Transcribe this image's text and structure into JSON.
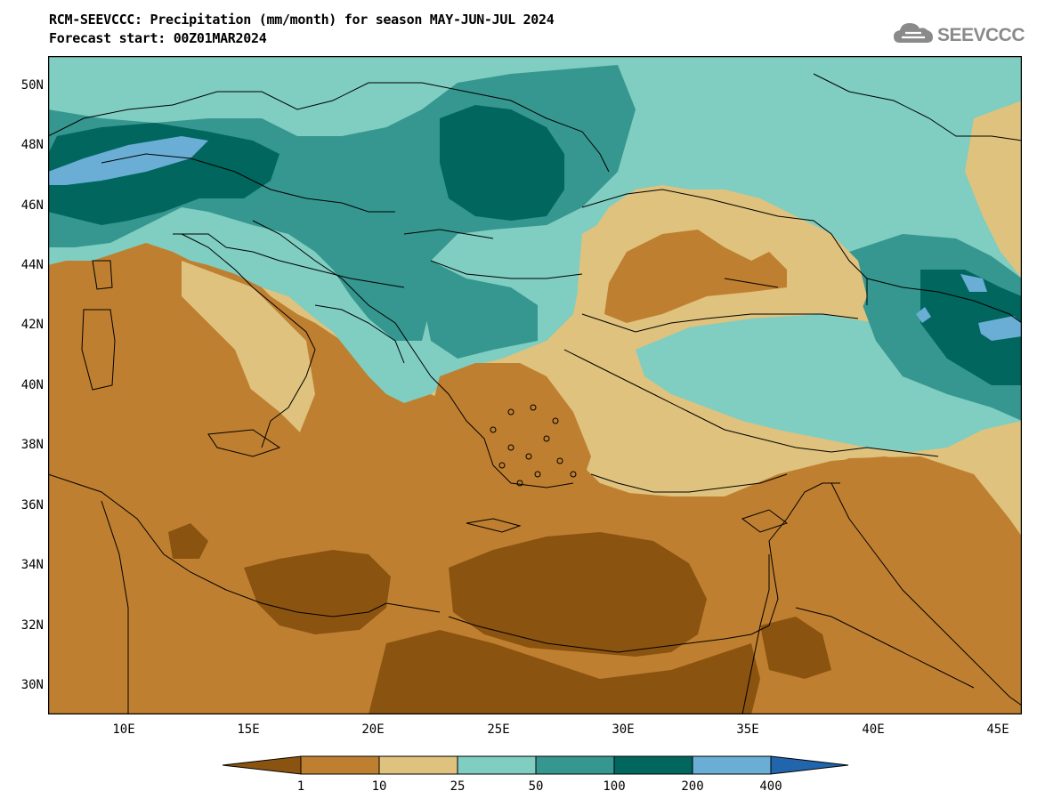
{
  "title": {
    "line1": "RCM-SEEVCCC: Precipitation (mm/month) for season MAY-JUN-JUL 2024",
    "line2": "Forecast start: 00Z01MAR2024"
  },
  "logo": {
    "text": "SEEVCCC",
    "icon": "cloud-icon",
    "color": "#8a8a8a"
  },
  "axes": {
    "lat_labels": [
      "50N",
      "48N",
      "46N",
      "44N",
      "42N",
      "40N",
      "38N",
      "36N",
      "34N",
      "32N",
      "30N"
    ],
    "lon_labels": [
      "10E",
      "15E",
      "20E",
      "25E",
      "30E",
      "35E",
      "40E",
      "45E"
    ]
  },
  "legend": {
    "colors": [
      "#8b5310",
      "#bf7f30",
      "#dfc27d",
      "#80cdc1",
      "#35978f",
      "#01665e",
      "#6aaed6",
      "#2166ac"
    ],
    "thresholds": [
      "1",
      "10",
      "25",
      "50",
      "100",
      "200",
      "400"
    ]
  },
  "map": {
    "region": "South-East Europe, Mediterranean and Middle East",
    "lon_range": [
      7,
      46
    ],
    "lat_range": [
      29,
      51
    ],
    "variable": "Precipitation (mm/month)"
  }
}
